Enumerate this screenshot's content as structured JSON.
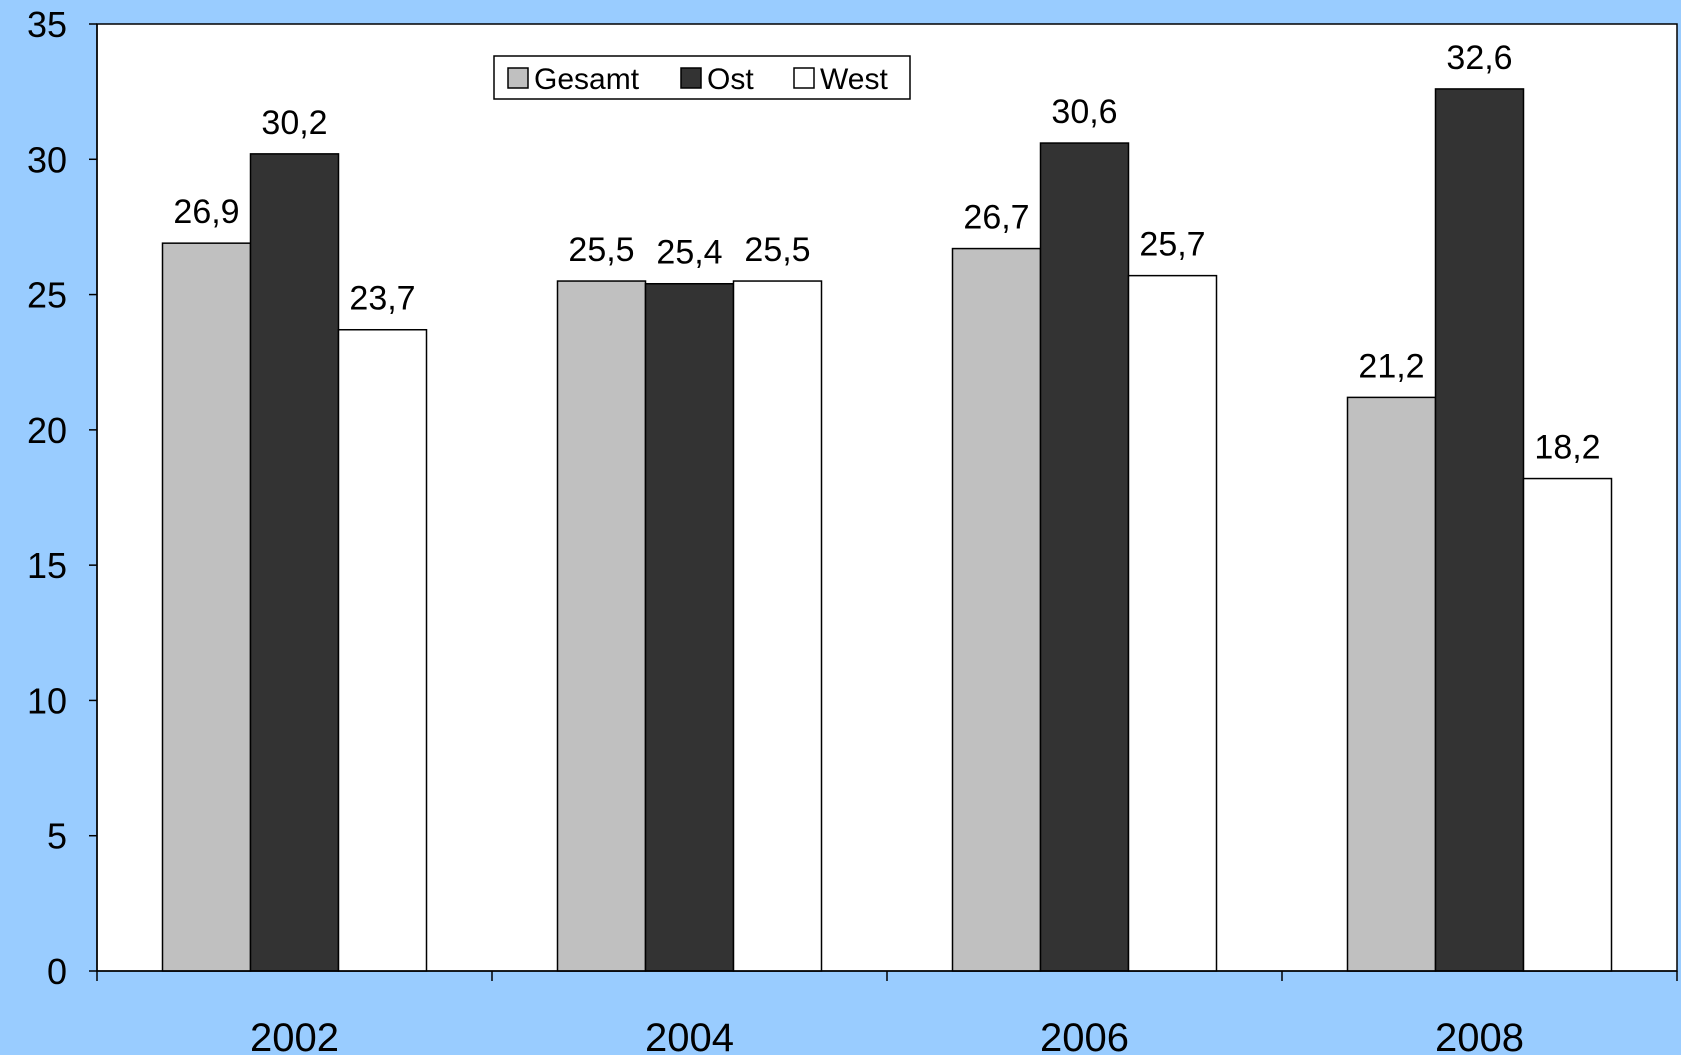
{
  "colors": {
    "background": "#99CCFF",
    "plot_area": "#FFFFFF",
    "axis": "#000000"
  },
  "chart_data": {
    "type": "bar",
    "title": "",
    "xlabel": "",
    "ylabel": "",
    "categories": [
      "2002",
      "2004",
      "2006",
      "2008"
    ],
    "series": [
      {
        "name": "Gesamt",
        "color": "#C0C0C0",
        "values": [
          26.9,
          25.5,
          26.7,
          21.2
        ],
        "labels": [
          "26,9",
          "25,5",
          "26,7",
          "21,2"
        ]
      },
      {
        "name": "Ost",
        "color": "#333333",
        "values": [
          30.2,
          25.4,
          30.6,
          32.6
        ],
        "labels": [
          "30,2",
          "25,4",
          "30,6",
          "32,6"
        ]
      },
      {
        "name": "West",
        "color": "#FFFFFF",
        "values": [
          23.7,
          25.5,
          25.7,
          18.2
        ],
        "labels": [
          "23,7",
          "25,5",
          "25,7",
          "18,2"
        ]
      }
    ],
    "ylim": [
      0,
      35
    ],
    "yticks": [
      0,
      5,
      10,
      15,
      20,
      25,
      30,
      35
    ],
    "grid": false,
    "legend_position": "top-center"
  }
}
